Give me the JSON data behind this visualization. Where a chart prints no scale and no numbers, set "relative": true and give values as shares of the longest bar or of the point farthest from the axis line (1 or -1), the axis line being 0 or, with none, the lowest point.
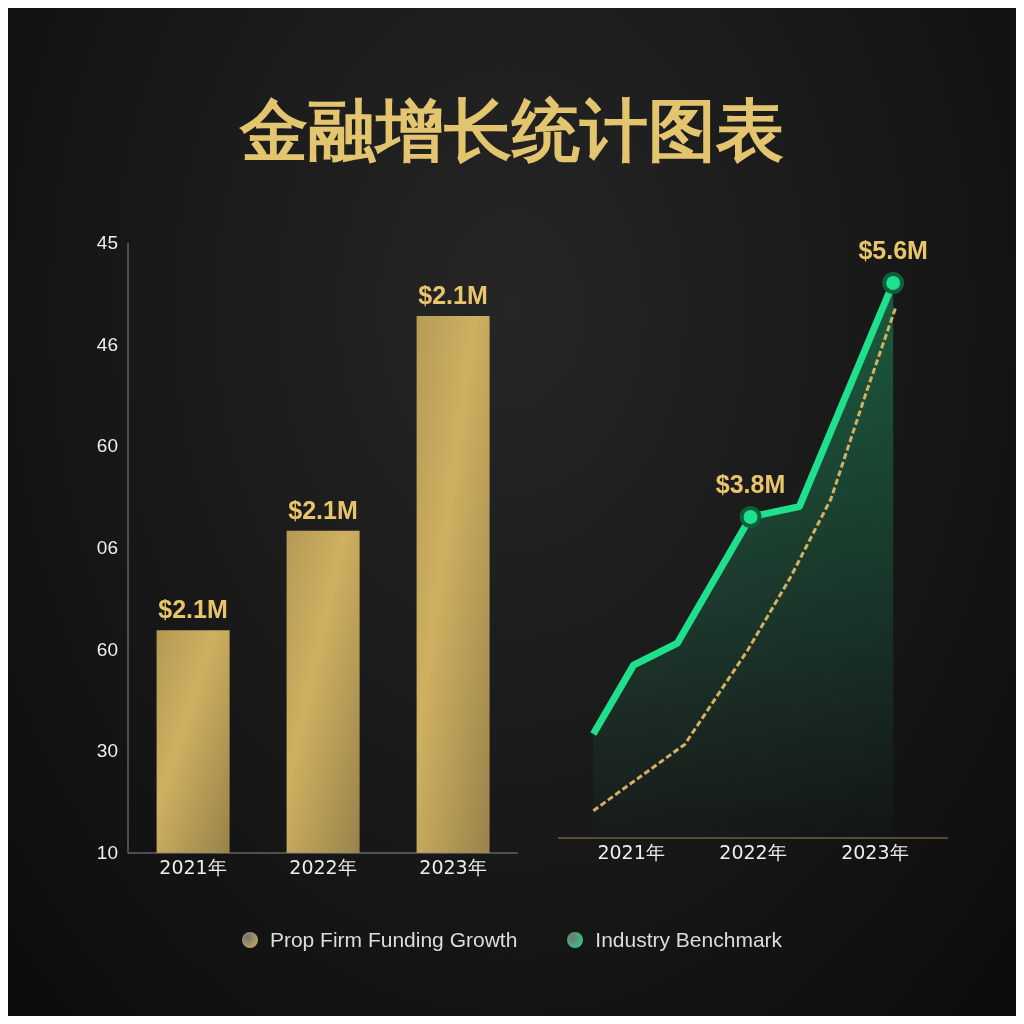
{
  "chart_data": [
    {
      "type": "bar",
      "title": "金融增长统计图表",
      "relative": true,
      "categories": [
        "2021年",
        "2022年",
        "2023年"
      ],
      "series": [
        {
          "color": "#cfb060",
          "values": [
            0.415,
            0.6,
            1
          ]
        }
      ],
      "annotations": [
        "45",
        "46",
        "60",
        "06",
        "60",
        "30",
        "10",
        {
          "text": "$2.1M",
          "x": "2021年",
          "y": 0.415
        },
        {
          "text": "$2.1M",
          "x": "2022年",
          "y": 0.6
        },
        {
          "text": "$2.1M",
          "x": "2023年",
          "y": 1
        }
      ]
    },
    {
      "type": "line",
      "legend": "bottom",
      "xlim": [
        2020.4,
        2023.6
      ],
      "xticks": [
        {
          "value": 2021,
          "label": "2021年"
        },
        {
          "value": 2022,
          "label": "2022年"
        },
        {
          "value": 2023,
          "label": "2023年"
        }
      ],
      "series": [
        {
          "name": "Prop Firm Funding Growth",
          "type": "line",
          "line_style": "dashed",
          "color": "#d4b060",
          "x": [
            2020.69,
            2021.44,
            2021.96,
            2022.31,
            2022.64,
            2022.93,
            2023.17
          ],
          "values": [
            1.54,
            2.05,
            2.78,
            3.34,
            3.94,
            4.76,
            5.41
          ]
        },
        {
          "name": "Industry Benchmark",
          "type": "area",
          "color": "#1fe08c",
          "x": [
            2020.69,
            2021.02,
            2021.38,
            2021.98,
            2022.38,
            2023.15
          ],
          "values": [
            2.13,
            2.66,
            2.83,
            3.8,
            3.88,
            5.6
          ],
          "value_labels": [
            null,
            null,
            null,
            "$3.8M",
            null,
            "$5.6M"
          ]
        }
      ]
    }
  ]
}
